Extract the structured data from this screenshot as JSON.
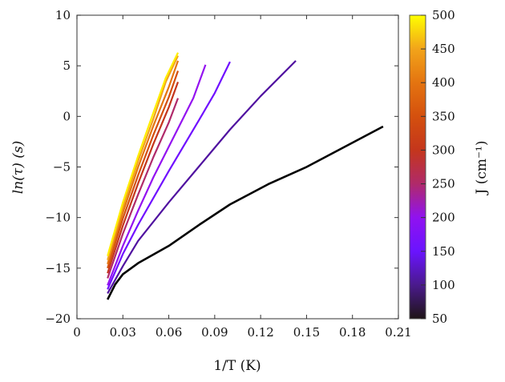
{
  "chart_data": {
    "type": "line",
    "xlabel": "1/T (K)",
    "ylabel": "ln(τ) (s)",
    "xlim": [
      0,
      0.21
    ],
    "ylim": [
      -20,
      10
    ],
    "xticks": [
      "0",
      "0.03",
      "0.06",
      "0.09",
      "0.12",
      "0.15",
      "0.18",
      "0.21"
    ],
    "yticks": [
      "-20",
      "-15",
      "-10",
      "-5",
      "0",
      "5",
      "10"
    ],
    "grid": false,
    "colorbar": {
      "label": "J (cm⁻¹)",
      "range": [
        50,
        500
      ],
      "ticks": [
        "50",
        "100",
        "150",
        "200",
        "250",
        "300",
        "350",
        "400",
        "450",
        "500"
      ],
      "colors": [
        "#1e1416",
        "#4a1a8c",
        "#6a14ff",
        "#9012f0",
        "#b02a6a",
        "#c4361c",
        "#d4500e",
        "#e47410",
        "#f2a41a",
        "#ffff00"
      ]
    },
    "series": [
      {
        "J": 50,
        "color": "#000000",
        "points": [
          [
            0.02,
            -18.1
          ],
          [
            0.025,
            -16.6
          ],
          [
            0.03,
            -15.6
          ],
          [
            0.04,
            -14.5
          ],
          [
            0.06,
            -12.8
          ],
          [
            0.08,
            -10.7
          ],
          [
            0.1,
            -8.7
          ],
          [
            0.125,
            -6.7
          ],
          [
            0.15,
            -5.0
          ],
          [
            0.175,
            -3.0
          ],
          [
            0.2,
            -1.0
          ]
        ]
      },
      {
        "J": 100,
        "color": "#5012a0",
        "points": [
          [
            0.02,
            -17.5
          ],
          [
            0.03,
            -14.8
          ],
          [
            0.04,
            -12.3
          ],
          [
            0.06,
            -8.5
          ],
          [
            0.08,
            -4.9
          ],
          [
            0.1,
            -1.3
          ],
          [
            0.12,
            2.0
          ],
          [
            0.143,
            5.5
          ]
        ]
      },
      {
        "J": 150,
        "color": "#7010ff",
        "points": [
          [
            0.02,
            -17.1
          ],
          [
            0.03,
            -13.6
          ],
          [
            0.04,
            -10.7
          ],
          [
            0.06,
            -5.4
          ],
          [
            0.08,
            -0.3
          ],
          [
            0.09,
            2.3
          ],
          [
            0.1,
            5.4
          ]
        ]
      },
      {
        "J": 200,
        "color": "#9412f0",
        "points": [
          [
            0.02,
            -16.7
          ],
          [
            0.03,
            -12.8
          ],
          [
            0.04,
            -9.3
          ],
          [
            0.05,
            -6.0
          ],
          [
            0.06,
            -3.0
          ],
          [
            0.07,
            0.0
          ],
          [
            0.076,
            1.8
          ],
          [
            0.084,
            5.1
          ]
        ]
      },
      {
        "J": 250,
        "color": "#b02a6a",
        "points": [
          [
            0.02,
            -16.0
          ],
          [
            0.03,
            -11.6
          ],
          [
            0.04,
            -7.7
          ],
          [
            0.05,
            -4.0
          ],
          [
            0.06,
            -0.6
          ],
          [
            0.066,
            1.8
          ]
        ]
      },
      {
        "J": 300,
        "color": "#c4361c",
        "points": [
          [
            0.02,
            -15.5
          ],
          [
            0.03,
            -10.8
          ],
          [
            0.04,
            -6.6
          ],
          [
            0.05,
            -2.7
          ],
          [
            0.06,
            0.9
          ],
          [
            0.066,
            3.4
          ]
        ]
      },
      {
        "J": 350,
        "color": "#d4500e",
        "points": [
          [
            0.02,
            -15.0
          ],
          [
            0.03,
            -10.1
          ],
          [
            0.04,
            -5.8
          ],
          [
            0.05,
            -1.8
          ],
          [
            0.06,
            1.9
          ],
          [
            0.066,
            4.5
          ]
        ]
      },
      {
        "J": 400,
        "color": "#e47410",
        "points": [
          [
            0.02,
            -14.6
          ],
          [
            0.03,
            -9.5
          ],
          [
            0.04,
            -5.0
          ],
          [
            0.05,
            -0.9
          ],
          [
            0.06,
            2.9
          ],
          [
            0.066,
            5.5
          ]
        ]
      },
      {
        "J": 450,
        "color": "#f2a41a",
        "points": [
          [
            0.02,
            -14.2
          ],
          [
            0.03,
            -9.0
          ],
          [
            0.04,
            -4.4
          ],
          [
            0.05,
            -0.2
          ],
          [
            0.058,
            3.4
          ],
          [
            0.066,
            6.0
          ]
        ]
      },
      {
        "J": 500,
        "color": "#ffee00",
        "points": [
          [
            0.02,
            -13.8
          ],
          [
            0.03,
            -8.5
          ],
          [
            0.04,
            -3.9
          ],
          [
            0.05,
            0.4
          ],
          [
            0.058,
            3.8
          ],
          [
            0.066,
            6.3
          ]
        ]
      }
    ]
  }
}
